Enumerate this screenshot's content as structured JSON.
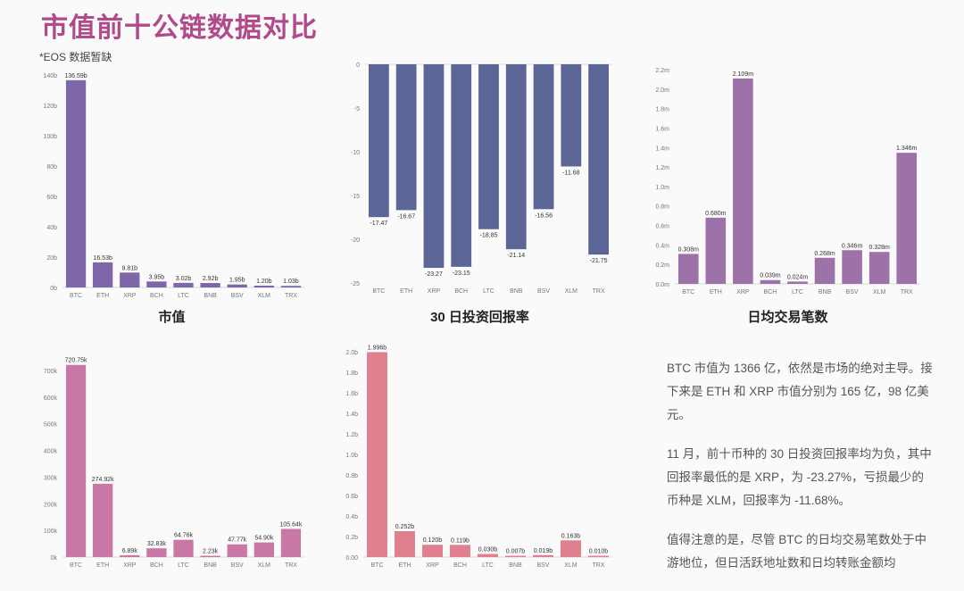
{
  "page": {
    "title": "市值前十公链数据对比",
    "note": "*EOS 数据暂缺"
  },
  "summary": [
    "BTC 市值为 1366 亿，依然是市场的绝对主导。接下来是 ETH 和 XRP 市值分别为 165 亿，98 亿美元。",
    "11 月，前十币种的 30 日投资回报率均为负，其中回报率最低的是 XRP，为 -23.27%，亏损最少的币种是 XLM，回报率为 -11.68%。",
    "值得注意的是，尽管 BTC 的日均交易笔数处于中游地位，但日活跃地址数和日均转账金额均"
  ],
  "chart_data": [
    {
      "type": "bar",
      "title": "市值",
      "color": "#7e66a8",
      "categories": [
        "BTC",
        "ETH",
        "XRP",
        "BCH",
        "LTC",
        "BNB",
        "BSV",
        "XLM",
        "TRX"
      ],
      "values": [
        136.59,
        16.53,
        9.81,
        3.95,
        3.02,
        2.92,
        1.95,
        1.2,
        1.03
      ],
      "value_labels": [
        "136.59b",
        "16.53b",
        "9.81b",
        "3.95b",
        "3.02b",
        "2.92b",
        "1.95b",
        "1.20b",
        "1.03b"
      ],
      "ylim": [
        0,
        140
      ],
      "yticks": [
        0,
        20,
        40,
        60,
        80,
        100,
        120,
        140
      ],
      "ytick_labels": [
        "0b",
        "20b",
        "40b",
        "60b",
        "80b",
        "100b",
        "120b",
        "140b"
      ]
    },
    {
      "type": "bar",
      "title": "30 日投资回报率",
      "color": "#5b6696",
      "categories": [
        "BTC",
        "ETH",
        "XRP",
        "BCH",
        "LTC",
        "BNB",
        "BSV",
        "XLM",
        "TRX"
      ],
      "values": [
        -17.47,
        -16.67,
        -23.27,
        -23.15,
        -18.85,
        -21.14,
        -16.56,
        -11.68,
        -21.75
      ],
      "value_labels": [
        "-17.47",
        "-16.67",
        "-23.27",
        "-23.15",
        "-18.85",
        "-21.14",
        "-16.56",
        "-11.68",
        "-21.75"
      ],
      "ylim": [
        -25,
        0
      ],
      "yticks": [
        0,
        -5,
        -10,
        -15,
        -20,
        -25
      ],
      "ytick_labels": [
        "0",
        "-5",
        "-10",
        "-15",
        "-20",
        "-25"
      ]
    },
    {
      "type": "bar",
      "title": "日均交易笔数",
      "color": "#9d72a8",
      "categories": [
        "BTC",
        "ETH",
        "XRP",
        "BCH",
        "LTC",
        "BNB",
        "BSV",
        "XLM",
        "TRX"
      ],
      "values": [
        0.308,
        0.68,
        2.109,
        0.039,
        0.024,
        0.268,
        0.346,
        0.328,
        1.346
      ],
      "value_labels": [
        "0.308m",
        "0.680m",
        "2.109m",
        "0.039m",
        "0.024m",
        "0.268m",
        "0.346m",
        "0.328m",
        "1.346m"
      ],
      "ylim": [
        0,
        2.2
      ],
      "yticks": [
        0,
        0.2,
        0.4,
        0.6,
        0.8,
        1.0,
        1.2,
        1.4,
        1.6,
        1.8,
        2.0,
        2.2
      ],
      "ytick_labels": [
        "0.0m",
        "0.2m",
        "0.4m",
        "0.6m",
        "0.8m",
        "1.0m",
        "1.2m",
        "1.4m",
        "1.6m",
        "1.8m",
        "2.0m",
        "2.2m"
      ]
    },
    {
      "type": "bar",
      "title": "",
      "color": "#c978a6",
      "categories": [
        "BTC",
        "ETH",
        "XRP",
        "BCH",
        "LTC",
        "BNB",
        "BSV",
        "XLM",
        "TRX"
      ],
      "values": [
        720.75,
        274.92,
        6.89,
        32.83,
        64.76,
        2.23,
        47.77,
        54.9,
        105.64
      ],
      "value_labels": [
        "720.75k",
        "274.92k",
        "6.89k",
        "32.83k",
        "64.76k",
        "2.23k",
        "47.77k",
        "54.90k",
        "105.64k"
      ],
      "ylim": [
        0,
        750
      ],
      "yticks": [
        0,
        100,
        200,
        300,
        400,
        500,
        600,
        700
      ],
      "ytick_labels": [
        "0k",
        "100k",
        "200k",
        "300k",
        "400k",
        "500k",
        "600k",
        "700k"
      ]
    },
    {
      "type": "bar",
      "title": "",
      "color": "#e0808f",
      "categories": [
        "BTC",
        "ETH",
        "XRP",
        "BCH",
        "LTC",
        "BNB",
        "BSV",
        "XLM",
        "TRX"
      ],
      "values": [
        1.996,
        0.252,
        0.12,
        0.119,
        0.03,
        0.007,
        0.019,
        0.163,
        0.01
      ],
      "value_labels": [
        "1.996b",
        "0.252b",
        "0.120b",
        "0.119b",
        "0.030b",
        "0.007b",
        "0.019b",
        "0.163b",
        "0.010b"
      ],
      "ylim": [
        0,
        2.0
      ],
      "yticks": [
        0,
        0.2,
        0.4,
        0.6,
        0.8,
        1.0,
        1.2,
        1.4,
        1.6,
        1.8,
        2.0
      ],
      "ytick_labels": [
        "0.00",
        "0.2b",
        "0.4b",
        "0.6b",
        "0.8b",
        "1.0b",
        "1.2b",
        "1.4b",
        "1.6b",
        "1.8b",
        "2.0b"
      ]
    }
  ]
}
